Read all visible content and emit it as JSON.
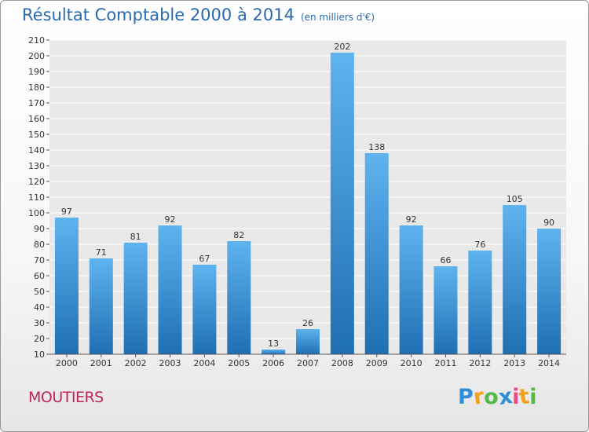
{
  "colors": {
    "title": "#2a6aad",
    "bar_top": "#5fb3ee",
    "bar_bottom": "#1f6fb3",
    "plot_bg": "#e9e9e9",
    "grid": "#ffffff",
    "city": "#c0245a"
  },
  "chart_data": {
    "type": "bar",
    "title": "Résultat Comptable 2000 à 2014",
    "subtitle": "(en milliers d'€)",
    "categories": [
      "2000",
      "2001",
      "2002",
      "2003",
      "2004",
      "2005",
      "2006",
      "2007",
      "2008",
      "2009",
      "2010",
      "2011",
      "2012",
      "2013",
      "2014"
    ],
    "values": [
      97,
      71,
      81,
      92,
      67,
      82,
      13,
      26,
      202,
      138,
      92,
      66,
      76,
      105,
      90
    ],
    "ylim": [
      10,
      210
    ],
    "ytick_step": 10,
    "grid": true,
    "xlabel": "",
    "ylabel": ""
  },
  "footer": {
    "city": "MOUTIERS",
    "logo_text": "Proxiti",
    "logo_letters": [
      {
        "ch": "P",
        "color": "#2e8fd6"
      },
      {
        "ch": "r",
        "color": "#f0a21c"
      },
      {
        "ch": "o",
        "color": "#57b847"
      },
      {
        "ch": "x",
        "color": "#2e8fd6"
      },
      {
        "ch": "i",
        "color": "#e84b8a"
      },
      {
        "ch": "t",
        "color": "#f0a21c"
      },
      {
        "ch": "i",
        "color": "#57b847"
      }
    ]
  }
}
